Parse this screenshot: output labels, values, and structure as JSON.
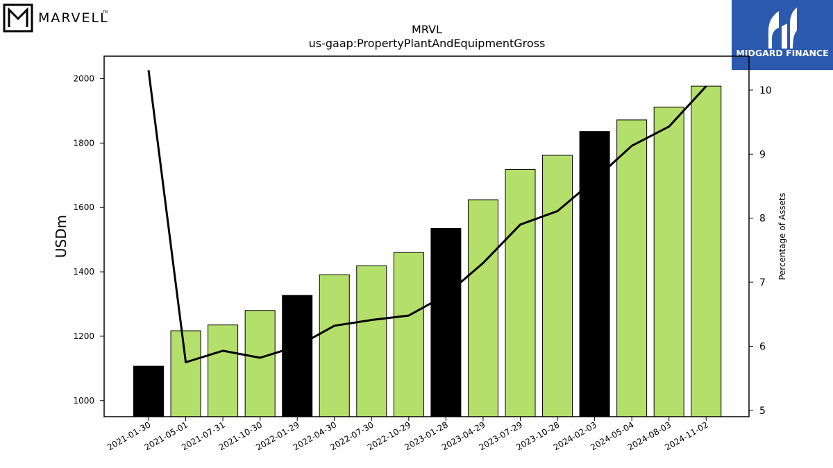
{
  "header": {
    "company_logo_text": "MARVELL",
    "company_logo_mark": "TM",
    "brand_logo_text": "MIDGARD FINANCE"
  },
  "colors": {
    "bar_normal": "#b5df6b",
    "bar_highlight": "#000000",
    "line": "#000000",
    "brand_bg": "#2b59ad",
    "brand_text": "#ffffff"
  },
  "chart_data": {
    "type": "bar",
    "title": "MRVL",
    "subtitle": "us-gaap:PropertyPlantAndEquipmentGross",
    "ylabel": "USDm",
    "y2label": "Percentage of Assets",
    "ylim": [
      950,
      2070
    ],
    "y2lim": [
      4.9,
      10.53
    ],
    "yticks": [
      1000,
      1200,
      1400,
      1600,
      1800,
      2000
    ],
    "y2ticks": [
      5,
      6,
      7,
      8,
      9,
      10
    ],
    "categories": [
      "2021-01-30",
      "2021-05-01",
      "2021-07-31",
      "2021-10-30",
      "2022-01-29",
      "2022-04-30",
      "2022-07-30",
      "2022-10-29",
      "2023-01-28",
      "2023-04-29",
      "2023-07-29",
      "2023-10-28",
      "2024-02-03",
      "2024-05-04",
      "2024-08-03",
      "2024-11-02"
    ],
    "series": [
      {
        "axis": "left",
        "values": [
          1107,
          1217,
          1235,
          1280,
          1327,
          1391,
          1419,
          1460,
          1535,
          1624,
          1718,
          1762,
          1836,
          1872,
          1912,
          1977
        ],
        "highlight": [
          true,
          false,
          false,
          false,
          true,
          false,
          false,
          false,
          true,
          false,
          false,
          false,
          true,
          false,
          false,
          false
        ]
      },
      {
        "axis": "right",
        "type": "line",
        "values": [
          10.31,
          5.75,
          5.93,
          5.82,
          6.0,
          6.32,
          6.41,
          6.48,
          6.8,
          7.3,
          7.9,
          8.11,
          8.6,
          9.13,
          9.43,
          10.06
        ]
      }
    ]
  }
}
